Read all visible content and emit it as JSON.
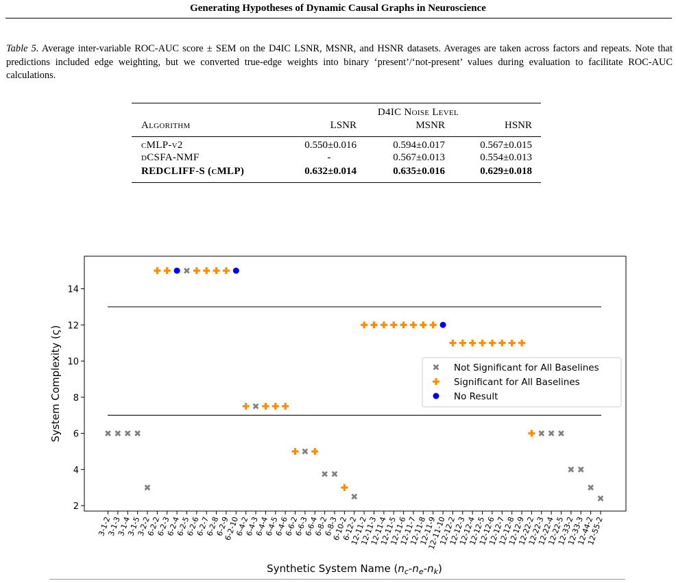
{
  "header": {
    "running_title": "Generating Hypotheses of Dynamic Causal Graphs in Neuroscience"
  },
  "table": {
    "caption_label": "Table 5.",
    "caption_text": "Average inter-variable ROC-AUC score ± SEM on the D4IC LSNR, MSNR, and HSNR datasets. Averages are taken across factors and repeats. Note that predictions included edge weighting, but we converted true-edge weights into binary ‘present’/‘not-present’ values during evaluation to facilitate ROC-AUC calculations.",
    "group_header": "D4IC Noise Level",
    "col_algorithm": "Algorithm",
    "col_lsnr": "LSNR",
    "col_msnr": "MSNR",
    "col_hsnr": "HSNR",
    "rows": [
      {
        "algorithm": "cMLP-v2",
        "lsnr": "0.550±0.016",
        "msnr": "0.594±0.017",
        "hsnr": "0.567±0.015"
      },
      {
        "algorithm": "dCSFA-NMF",
        "lsnr": "-",
        "msnr": "0.567±0.013",
        "hsnr": "0.554±0.013"
      },
      {
        "algorithm": "REDCLIFF-S (cMLP)",
        "lsnr": "0.632±0.014",
        "msnr": "0.635±0.016",
        "hsnr": "0.629±0.018"
      }
    ]
  },
  "chart_data": {
    "type": "scatter",
    "xlabel": "Synthetic System Name (n_c-n_e-n_k)",
    "xlabel_parts": {
      "base": "Synthetic System Name (",
      "n": "n",
      "c": "c",
      "e": "e",
      "k": "k",
      "dash": "-",
      "close": ")"
    },
    "ylabel": "System Complexity (ς)",
    "ylim": [
      1.7,
      15.8
    ],
    "yticks": [
      2,
      4,
      6,
      8,
      10,
      12,
      14
    ],
    "grid": false,
    "legend_position": "center-right",
    "legend": [
      {
        "key": "ns",
        "label": "Not Significant for All Baselines",
        "marker": "x",
        "color": "#808080"
      },
      {
        "key": "sig",
        "label": "Significant for All Baselines",
        "marker": "plus",
        "color": "#ff8c00"
      },
      {
        "key": "nr",
        "label": "No Result",
        "marker": "circle",
        "color": "#0000ff"
      }
    ],
    "hlines": [
      13,
      7
    ],
    "categories": [
      "3-1-2",
      "3-1-3",
      "3-1-4",
      "3-1-5",
      "3-2-2",
      "6-2-2",
      "6-2-3",
      "6-2-4",
      "6-2-5",
      "6-2-6",
      "6-2-7",
      "6-2-8",
      "6-2-9",
      "6-2-10",
      "6-4-2",
      "6-4-3",
      "6-4-4",
      "6-4-5",
      "6-4-6",
      "6-6-2",
      "6-6-3",
      "6-6-4",
      "6-8-2",
      "6-8-3",
      "6-10-2",
      "6-12-2",
      "12-11-2",
      "12-11-3",
      "12-11-4",
      "12-11-5",
      "12-11-6",
      "12-11-7",
      "12-11-8",
      "12-11-9",
      "12-11-10",
      "12-12-2",
      "12-12-3",
      "12-12-4",
      "12-12-5",
      "12-12-6",
      "12-12-7",
      "12-12-8",
      "12-12-9",
      "12-22-2",
      "12-22-3",
      "12-22-4",
      "12-22-5",
      "12-33-2",
      "12-33-3",
      "12-44-2",
      "12-55-2"
    ],
    "values": [
      6,
      6,
      6,
      6,
      3,
      15,
      15,
      15,
      15,
      15,
      15,
      15,
      15,
      15,
      7.5,
      7.5,
      7.5,
      7.5,
      7.5,
      5,
      5,
      5,
      3.75,
      3.75,
      3,
      2.5,
      12,
      12,
      12,
      12,
      12,
      12,
      12,
      12,
      12,
      11,
      11,
      11,
      11,
      11,
      11,
      11,
      11,
      6,
      6,
      6,
      6,
      4,
      4,
      3,
      2.4
    ],
    "status": [
      "ns",
      "ns",
      "ns",
      "ns",
      "ns",
      "sig",
      "sig",
      "nr",
      "ns",
      "sig",
      "sig",
      "sig",
      "sig",
      "nr",
      "sig",
      "ns",
      "sig",
      "sig",
      "sig",
      "sig",
      "ns",
      "sig",
      "ns",
      "ns",
      "sig",
      "ns",
      "sig",
      "sig",
      "sig",
      "sig",
      "sig",
      "sig",
      "sig",
      "sig",
      "nr",
      "sig",
      "sig",
      "sig",
      "sig",
      "sig",
      "sig",
      "sig",
      "sig",
      "sig",
      "ns",
      "ns",
      "ns",
      "ns",
      "ns",
      "ns",
      "ns"
    ]
  }
}
